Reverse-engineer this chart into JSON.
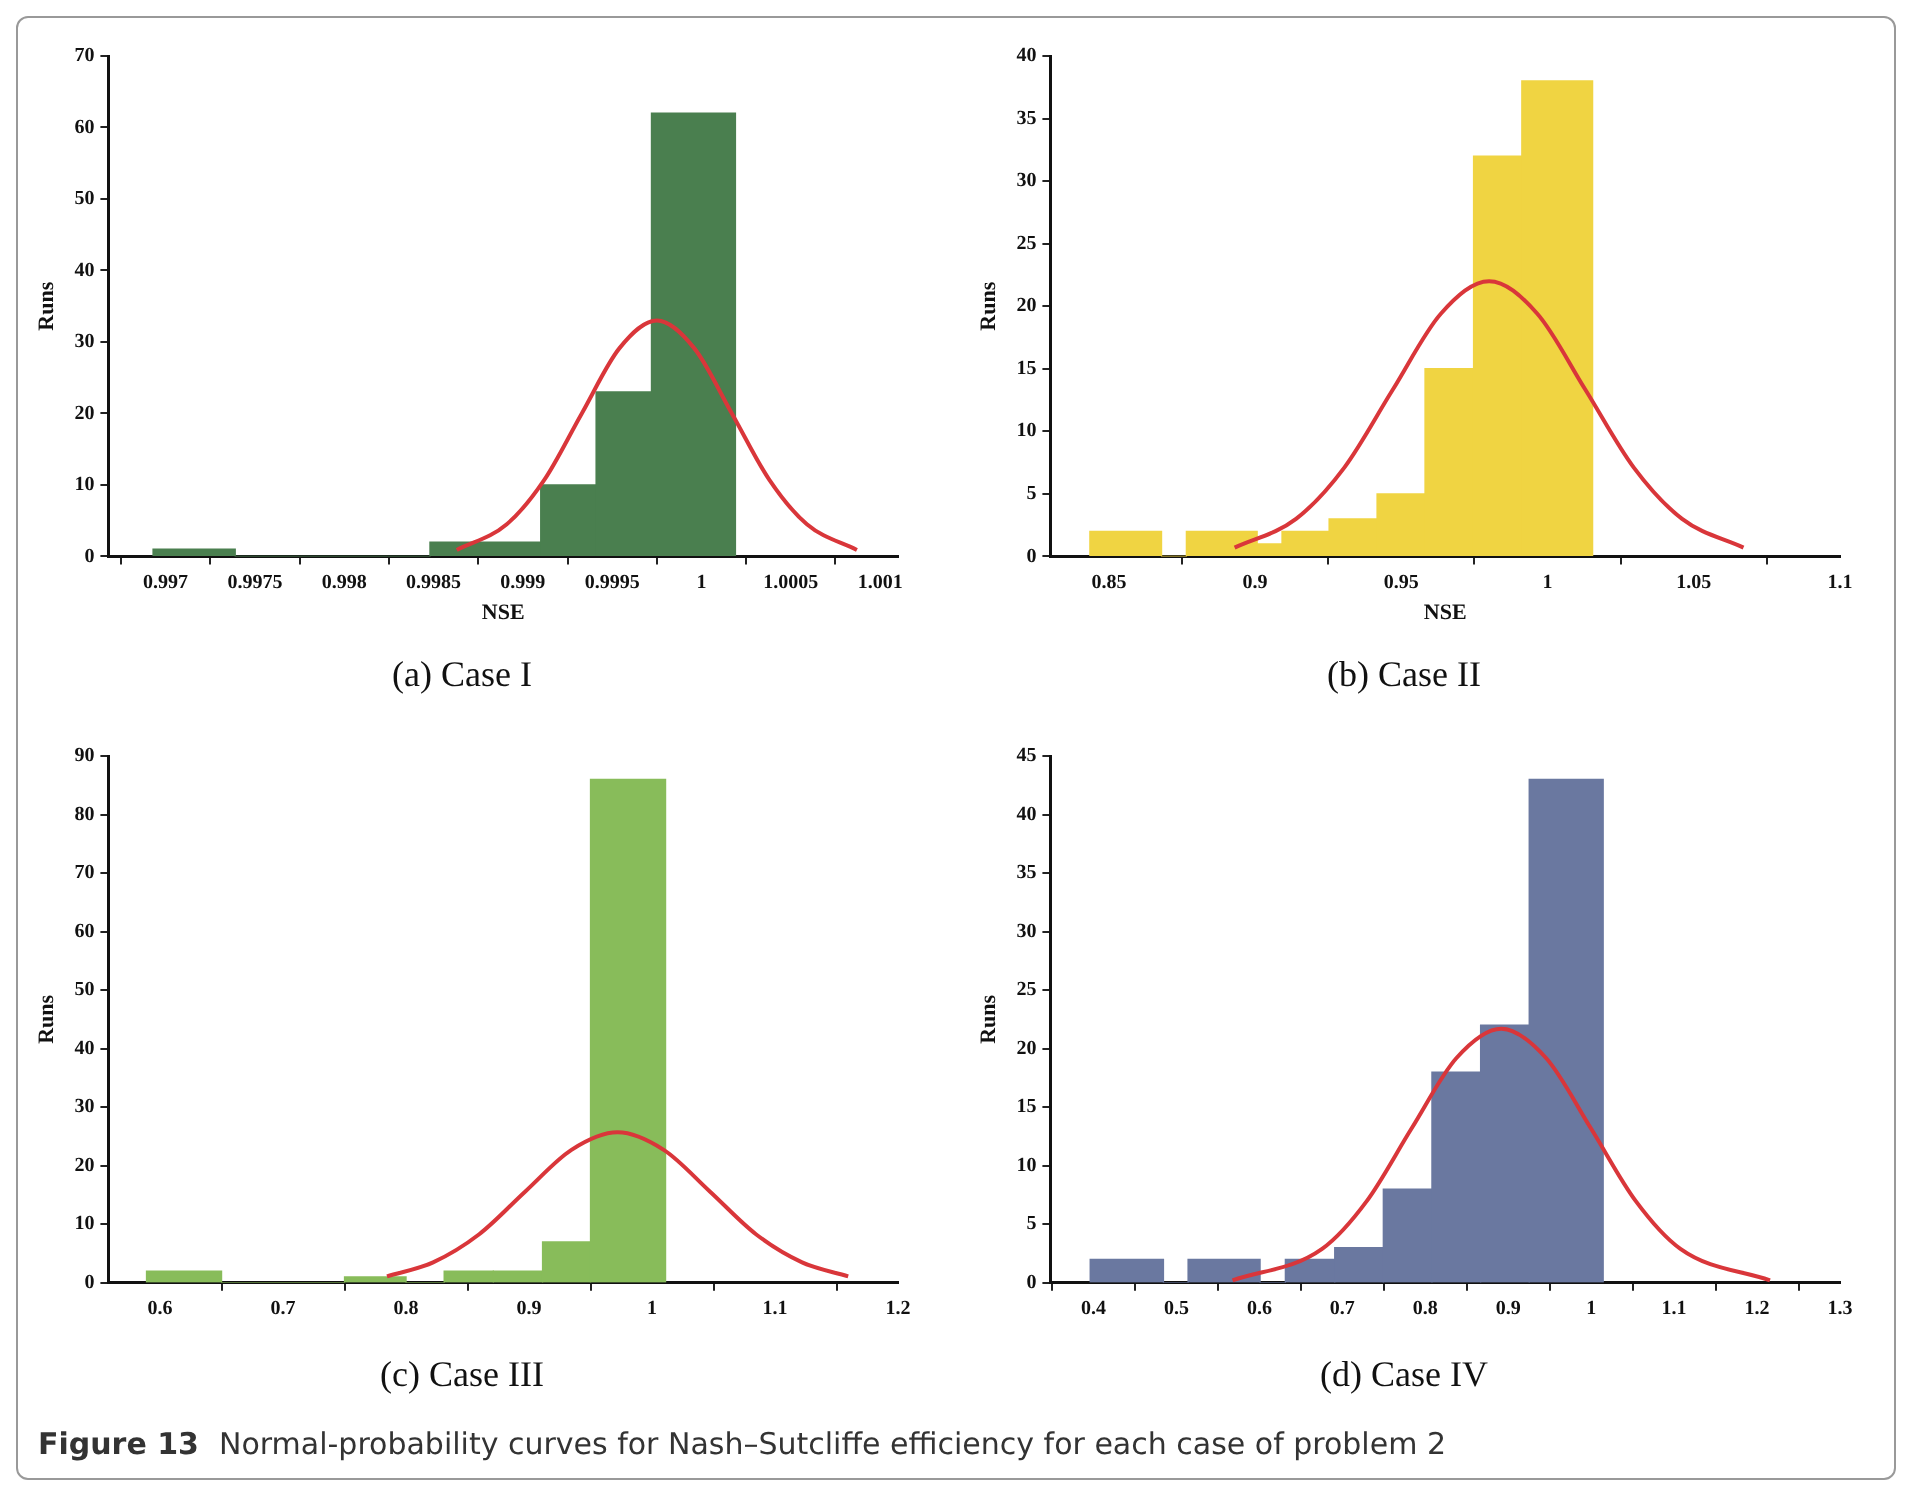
{
  "chart_data": [
    {
      "type": "histogram",
      "title": "(a) Case I",
      "xlabel": "NSE",
      "ylabel": "Runs",
      "color": "#4a7f4f",
      "bins": [
        0.99693,
        0.99739,
        0.99848,
        0.9991,
        0.99941,
        0.99972,
        1.00019
      ],
      "values": [
        1,
        0,
        2,
        10,
        23,
        62
      ],
      "series": [
        {
          "type": "line",
          "color": "#d9363a",
          "x": [
            0.99863,
            0.99891,
            0.99912,
            0.99933,
            0.99954,
            0.99975,
            0.99996,
            1.00017,
            1.00038,
            1.00059,
            1.00087
          ],
          "values": [
            0.9,
            4.5,
            10.7,
            20,
            29.1,
            33,
            29.1,
            20,
            10.7,
            4.5,
            0.9
          ]
        }
      ],
      "xlim": [
        0.99668,
        1.0011
      ],
      "xticks": [
        0.997,
        0.9975,
        0.998,
        0.9985,
        0.999,
        0.9995,
        1,
        1.0005,
        1.001
      ],
      "ylim": [
        0,
        70
      ],
      "yticks": [
        0,
        10,
        20,
        30,
        40,
        50,
        60,
        70
      ],
      "grid": false,
      "legend": false,
      "annotations": [
        "Figure 13",
        "Normal-probability curves for Nash–Sutcliffe efficiency for each case of problem 2"
      ]
    },
    {
      "type": "histogram",
      "title": "(b) Case II",
      "xlabel": "NSE",
      "ylabel": "Runs",
      "color": "#f0d442",
      "bins": [
        0.8435,
        0.868,
        0.8765,
        0.9007,
        0.9092,
        0.9253,
        0.9417,
        0.9581,
        0.9747,
        0.9912,
        1.0154
      ],
      "values": [
        2,
        0,
        2,
        1,
        2,
        3,
        5,
        15,
        32,
        38
      ],
      "series": [
        {
          "type": "line",
          "color": "#d9363a",
          "x": [
            0.893,
            0.914,
            0.9305,
            0.947,
            0.9635,
            0.98,
            0.9965,
            1.013,
            1.0295,
            1.046,
            1.067
          ],
          "values": [
            0.7,
            3,
            7.1,
            13.3,
            19.4,
            22,
            19.4,
            13.3,
            7.1,
            3,
            0.7
          ]
        }
      ],
      "xlim": [
        0.83,
        1.1
      ],
      "xticks": [
        0.85,
        0.9,
        0.95,
        1,
        1.05,
        1.1
      ],
      "ylim": [
        0,
        40
      ],
      "yticks": [
        0,
        5,
        10,
        15,
        20,
        25,
        30,
        35,
        40
      ],
      "grid": false,
      "legend": false
    },
    {
      "type": "histogram",
      "title": "(c) Case III",
      "ylabel": "Runs",
      "color": "#88bc5a",
      "bins": [
        0.589,
        0.65,
        0.75,
        0.8,
        0.831,
        0.871,
        0.911,
        0.95,
        1.011
      ],
      "values": [
        2,
        0,
        1,
        0,
        2,
        2,
        7,
        86
      ],
      "series": [
        {
          "type": "line",
          "color": "#d9363a",
          "x": [
            0.7845,
            0.822,
            0.8595,
            0.897,
            0.9345,
            0.972,
            1.0095,
            1.047,
            1.0845,
            1.122,
            1.1595
          ],
          "values": [
            1.1,
            3.5,
            8.3,
            15.6,
            22.7,
            25.7,
            22.7,
            15.6,
            8.3,
            3.5,
            1.1
          ]
        }
      ],
      "xlim": [
        0.558,
        1.2
      ],
      "xticks": [
        0.6,
        0.7,
        0.8,
        0.9,
        1,
        1.1,
        1.2
      ],
      "ylim": [
        0,
        90
      ],
      "yticks": [
        0,
        10,
        20,
        30,
        40,
        50,
        60,
        70,
        80,
        90
      ],
      "grid": false,
      "legend": false
    },
    {
      "type": "histogram",
      "title": "(d) Case IV",
      "ylabel": "Runs",
      "color": "#6a78a0",
      "bins": [
        0.396,
        0.4843,
        0.514,
        0.6008,
        0.6313,
        0.6908,
        0.7494,
        0.808,
        0.8667,
        0.9253,
        1.0145
      ],
      "values": [
        2,
        0,
        2,
        0,
        2,
        3,
        8,
        18,
        22,
        43
      ],
      "series": [
        {
          "type": "line",
          "color": "#d9363a",
          "x": [
            0.5676,
            0.6756,
            0.7296,
            0.7836,
            0.8376,
            0.8916,
            0.9456,
            0.9996,
            1.0536,
            1.1076,
            1.2156
          ],
          "values": [
            0.2,
            2.9,
            7,
            13.2,
            19.2,
            21.7,
            19.2,
            13.2,
            7,
            2.9,
            0.2
          ]
        }
      ],
      "xlim": [
        0.348,
        1.3
      ],
      "xticks": [
        0.4,
        0.5,
        0.6,
        0.7,
        0.8,
        0.9,
        1,
        1.1,
        1.2,
        1.3
      ],
      "ylim": [
        0,
        45
      ],
      "yticks": [
        0,
        5,
        10,
        15,
        20,
        25,
        30,
        35,
        40,
        45
      ],
      "grid": false,
      "legend": false
    }
  ]
}
